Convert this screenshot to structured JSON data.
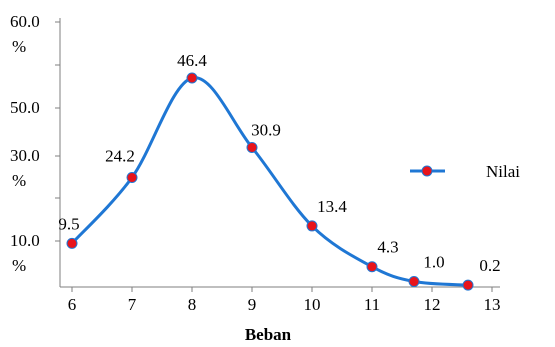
{
  "chart_data": {
    "type": "line",
    "xlabel": "Beban",
    "x_ticks": [
      "6",
      "7",
      "8",
      "9",
      "10",
      "11",
      "12",
      "13"
    ],
    "y_tick_labels": [
      {
        "value": 60,
        "line1": "60.0",
        "line2": "%"
      },
      {
        "value": 50,
        "line1": "50.0",
        "line2": ""
      },
      {
        "value": 30,
        "line1": "30.0",
        "line2": "%"
      },
      {
        "value": 10,
        "line1": "10.0",
        "line2": "%"
      }
    ],
    "series": [
      {
        "name": "Nilai",
        "color": "#1f77d4",
        "marker_color": "#e8141b",
        "x": [
          6,
          7,
          8,
          9,
          10,
          11,
          11.7,
          12.6
        ],
        "values": [
          9.5,
          24.2,
          46.4,
          30.9,
          13.4,
          4.3,
          1.0,
          0.2
        ],
        "labels": [
          "9.5",
          "24.2",
          "46.4",
          "30.9",
          "13.4",
          "4.3",
          "1.0",
          "0.2"
        ]
      }
    ],
    "legend_position": "right",
    "grid": false
  }
}
